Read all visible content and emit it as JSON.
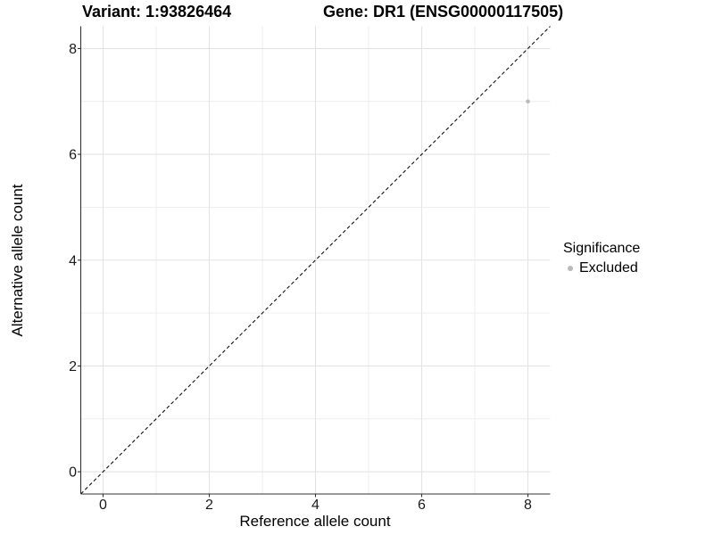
{
  "header": {
    "title_left": "Variant: 1:93826464",
    "title_right": "Gene: DR1 (ENSG00000117505)"
  },
  "legend": {
    "title": "Significance",
    "items": [
      {
        "label": "Excluded",
        "color": "#b9b9b9"
      }
    ]
  },
  "colors": {
    "grid_major": "#e3e3e3",
    "grid_minor": "#ededed",
    "axis_line": "#333333",
    "tick_mark": "#333333",
    "tick_label": "#1a1a1a",
    "reference_line": "#111111",
    "point": "#b9b9b9"
  },
  "chart_data": {
    "type": "scatter",
    "title": "Variant: 1:93826464 | Gene: DR1 (ENSG00000117505)",
    "xlabel": "Reference allele count",
    "ylabel": "Alternative allele count",
    "xlim": [
      -0.42,
      8.42
    ],
    "ylim": [
      -0.42,
      8.42
    ],
    "x_ticks": [
      0,
      2,
      4,
      6,
      8
    ],
    "y_ticks": [
      0,
      2,
      4,
      6,
      8
    ],
    "x_minor_ticks": [
      1,
      3,
      5,
      7
    ],
    "y_minor_ticks": [
      1,
      3,
      5,
      7
    ],
    "grid": "major+minor",
    "legend_position": "right",
    "series": [
      {
        "name": "Excluded",
        "color": "#b9b9b9",
        "marker_size": 2.3,
        "points": [
          {
            "x": 8,
            "y": 7
          }
        ]
      }
    ],
    "reference_line": {
      "kind": "identity",
      "slope": 1,
      "intercept": 0,
      "style": "dashed"
    }
  }
}
